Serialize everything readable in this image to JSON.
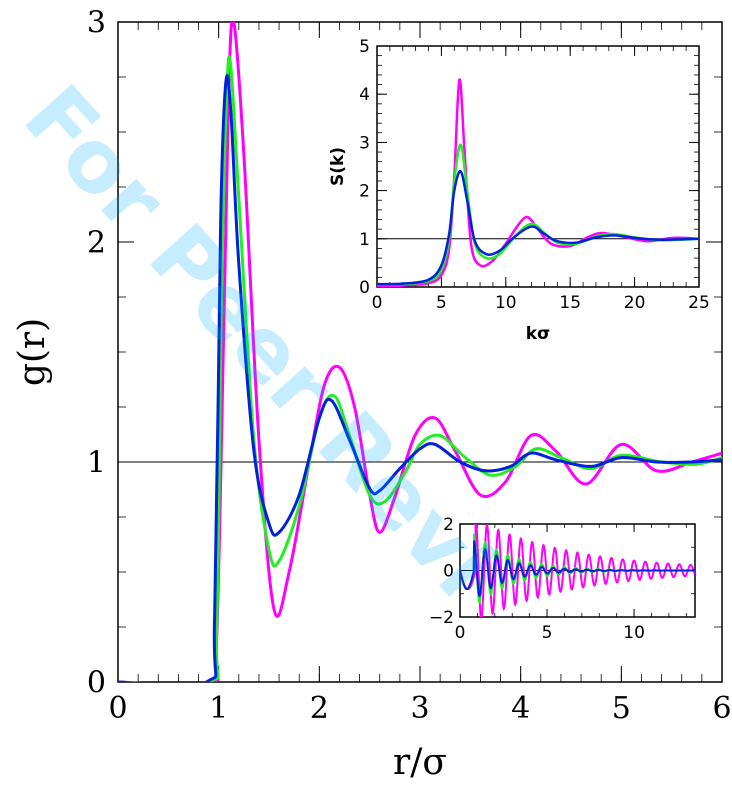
{
  "watermark": "For Peer Revi",
  "colors": {
    "magenta": "#ff00ff",
    "green": "#22ee22",
    "blue": "#0022dd",
    "reference": "#000000",
    "watermark": "#00aaff"
  },
  "chart_data": [
    {
      "type": "line",
      "panel": "main",
      "xlabel": "r/σ",
      "ylabel": "g(r)",
      "xlim": [
        0,
        6
      ],
      "ylim": [
        0,
        3
      ],
      "x_ticks": [
        "0",
        "1",
        "2",
        "3",
        "4",
        "5",
        "6"
      ],
      "y_ticks": [
        "0",
        "1",
        "2",
        "3"
      ],
      "reference_line": 1,
      "series": [
        {
          "color": "magenta",
          "x": [
            0,
            0.9,
            0.98,
            1.05,
            1.1,
            1.15,
            1.25,
            1.4,
            1.55,
            1.7,
            1.9,
            2.05,
            2.2,
            2.35,
            2.5,
            2.6,
            2.75,
            2.95,
            3.15,
            3.35,
            3.6,
            3.85,
            4.1,
            4.35,
            4.65,
            5.0,
            5.35,
            5.7,
            6.0
          ],
          "y": [
            0,
            0,
            0.2,
            1.6,
            2.7,
            3.0,
            2.4,
            1.1,
            0.33,
            0.5,
            1.0,
            1.35,
            1.43,
            1.25,
            0.85,
            0.68,
            0.84,
            1.12,
            1.2,
            1.05,
            0.85,
            0.91,
            1.12,
            1.05,
            0.9,
            1.08,
            0.96,
            1.0,
            1.04
          ]
        },
        {
          "color": "green",
          "x": [
            0,
            0.9,
            0.98,
            1.03,
            1.08,
            1.12,
            1.2,
            1.35,
            1.5,
            1.6,
            1.8,
            2.0,
            2.15,
            2.3,
            2.5,
            2.65,
            2.85,
            3.0,
            3.2,
            3.45,
            3.7,
            3.95,
            4.15,
            4.4,
            4.7,
            5.0,
            5.4,
            5.75,
            6.0
          ],
          "y": [
            0,
            0,
            0.25,
            1.8,
            2.68,
            2.8,
            2.2,
            1.1,
            0.6,
            0.55,
            0.8,
            1.2,
            1.3,
            1.12,
            0.85,
            0.82,
            0.95,
            1.08,
            1.12,
            1.02,
            0.94,
            0.98,
            1.06,
            1.02,
            0.97,
            1.03,
            1.0,
            0.99,
            1.02
          ]
        },
        {
          "color": "blue",
          "x": [
            0,
            0.88,
            0.96,
            1.02,
            1.07,
            1.12,
            1.2,
            1.35,
            1.5,
            1.6,
            1.8,
            2.0,
            2.12,
            2.3,
            2.5,
            2.6,
            2.8,
            3.0,
            3.15,
            3.4,
            3.65,
            3.9,
            4.1,
            4.35,
            4.7,
            5.0,
            5.35,
            5.7,
            6.0
          ],
          "y": [
            0,
            0,
            0.3,
            2.1,
            2.72,
            2.6,
            1.9,
            1.05,
            0.72,
            0.68,
            0.85,
            1.2,
            1.28,
            1.1,
            0.88,
            0.87,
            0.97,
            1.06,
            1.08,
            1.0,
            0.96,
            0.98,
            1.04,
            1.01,
            0.98,
            1.02,
            1.0,
            1.0,
            1.01
          ]
        }
      ]
    },
    {
      "type": "line",
      "panel": "inset-top",
      "xlabel": "kσ",
      "ylabel": "S(k)",
      "xlim": [
        0,
        25
      ],
      "ylim": [
        0,
        5
      ],
      "x_ticks": [
        "0",
        "5",
        "10",
        "15",
        "20",
        "25"
      ],
      "y_ticks": [
        "0",
        "1",
        "2",
        "3",
        "4",
        "5"
      ],
      "reference_line": 1,
      "series": [
        {
          "color": "magenta",
          "x": [
            0,
            2,
            4,
            5,
            5.6,
            6.0,
            6.4,
            6.8,
            7.3,
            8.0,
            9.0,
            10.0,
            11.0,
            11.7,
            12.5,
            13.5,
            15.0,
            16.5,
            17.5,
            19.0,
            21.0,
            23.0,
            25.0
          ],
          "y": [
            0.02,
            0.03,
            0.08,
            0.25,
            0.8,
            2.3,
            4.3,
            2.8,
            0.9,
            0.45,
            0.55,
            0.9,
            1.3,
            1.45,
            1.2,
            0.9,
            0.85,
            1.05,
            1.12,
            1.05,
            0.95,
            1.02,
            1.0
          ]
        },
        {
          "color": "green",
          "x": [
            0,
            2,
            4,
            5,
            5.6,
            6.0,
            6.5,
            7.0,
            7.6,
            8.5,
            9.5,
            10.5,
            11.5,
            12.2,
            13.0,
            14.0,
            15.5,
            17.0,
            18.3,
            20.0,
            22.0,
            25.0
          ],
          "y": [
            0.05,
            0.06,
            0.12,
            0.35,
            1.0,
            2.2,
            2.95,
            2.0,
            0.9,
            0.6,
            0.68,
            0.98,
            1.25,
            1.3,
            1.12,
            0.92,
            0.9,
            1.05,
            1.1,
            1.03,
            0.97,
            1.0
          ]
        },
        {
          "color": "blue",
          "x": [
            0,
            2,
            4,
            5,
            5.6,
            6.0,
            6.5,
            7.0,
            7.6,
            8.5,
            9.5,
            10.5,
            11.5,
            12.2,
            13.0,
            14.0,
            15.5,
            17.0,
            18.5,
            20.0,
            22.0,
            25.0
          ],
          "y": [
            0.06,
            0.07,
            0.15,
            0.45,
            1.1,
            2.0,
            2.4,
            1.8,
            0.95,
            0.68,
            0.75,
            1.0,
            1.2,
            1.25,
            1.1,
            0.95,
            0.92,
            1.03,
            1.07,
            1.02,
            0.98,
            1.0
          ]
        }
      ]
    },
    {
      "type": "line",
      "panel": "inset-bottom",
      "xlim": [
        0,
        13.5
      ],
      "ylim": [
        -2,
        2
      ],
      "x_ticks": [
        "0",
        "5",
        "10"
      ],
      "y_ticks": [
        "−2",
        "0",
        "2"
      ],
      "reference_line": 0,
      "series": [
        {
          "color": "magenta",
          "oscillation": {
            "start": 0.9,
            "period": 0.65,
            "amplitude": 2.2,
            "decay": 0.18
          }
        },
        {
          "color": "green",
          "oscillation": {
            "start": 0.8,
            "period": 0.65,
            "amplitude": 1.6,
            "decay": 0.45
          }
        },
        {
          "color": "blue",
          "oscillation": {
            "start": 0.8,
            "period": 0.65,
            "amplitude": 1.3,
            "decay": 0.55
          }
        }
      ]
    }
  ]
}
